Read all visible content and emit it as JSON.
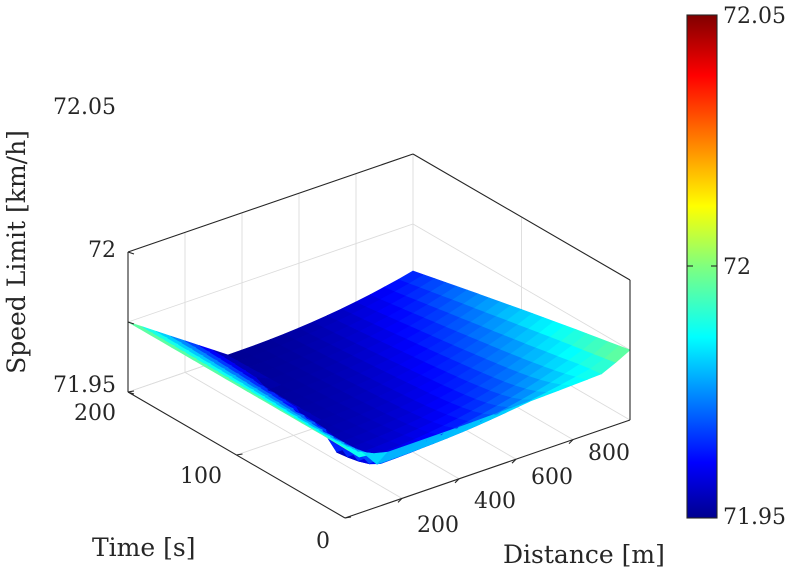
{
  "chart_data": {
    "type": "surface",
    "title": "",
    "xlabel": "Distance [m]",
    "ylabel": "Time [s]",
    "zlabel": "Speed Limit [km/h]",
    "xlim": [
      0,
      1000
    ],
    "ylim": [
      0,
      200
    ],
    "zlim": [
      71.95,
      72.05
    ],
    "xticks": [
      200,
      400,
      600,
      800
    ],
    "xtick_labels": [
      "200",
      "400",
      "600",
      "800"
    ],
    "yticks": [
      0,
      100,
      200
    ],
    "ytick_labels": [
      "0",
      "100",
      "200"
    ],
    "zticks": [
      71.95,
      72,
      72.05
    ],
    "ztick_labels": [
      "71.95",
      "72",
      "72.05"
    ],
    "grid": true,
    "colormap": "jet",
    "colorbar": {
      "limits": [
        71.95,
        72.05
      ],
      "ticks": [
        71.95,
        72,
        72.05
      ],
      "tick_labels": [
        "71.95",
        "72",
        "72.05"
      ],
      "placement": "right"
    },
    "surface": {
      "x": [
        0,
        100,
        200,
        300,
        400,
        500,
        600,
        700,
        800,
        900,
        1000
      ],
      "y": [
        0,
        20,
        40,
        60,
        80,
        100,
        120,
        140,
        160,
        180,
        200
      ],
      "z_initial_along_x_at_t200": 72,
      "z_min": 71.95,
      "z_max": 72,
      "description_values": {
        "start_edge_value": 72,
        "plateau_value": 71.975,
        "valley_value": 71.95,
        "far_corner_value": 72
      }
    }
  }
}
